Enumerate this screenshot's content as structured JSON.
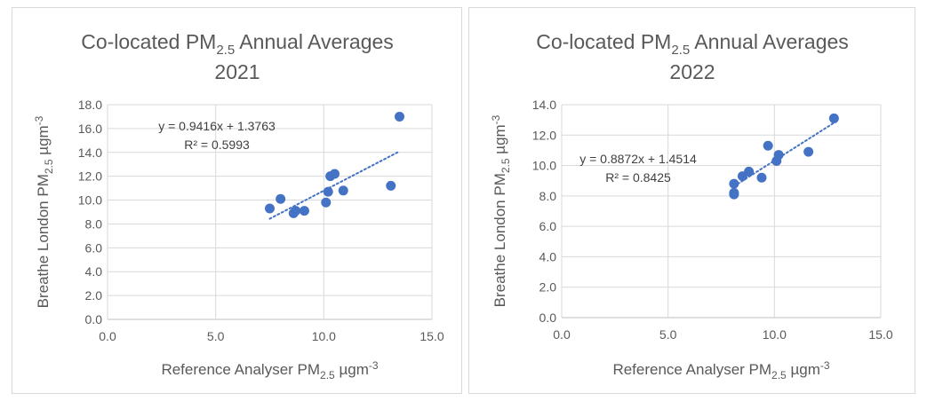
{
  "chart_data": [
    {
      "type": "scatter",
      "title": {
        "main": "Co-located PM",
        "sub": "2.5",
        "rest": " Annual Averages",
        "line2": "2021"
      },
      "xlabel": {
        "main": "Reference Analyser PM",
        "sub": "2.5",
        "rest": " µgm",
        "sup": "-3"
      },
      "ylabel": {
        "main": "Breathe London PM",
        "sub": "2.5",
        "rest": " µgm",
        "sup": "-3"
      },
      "xlim": [
        0,
        15
      ],
      "ylim": [
        0,
        18
      ],
      "x_ticks": [
        "0.0",
        "5.0",
        "10.0",
        "15.0"
      ],
      "y_ticks": [
        "0.0",
        "2.0",
        "4.0",
        "6.0",
        "8.0",
        "10.0",
        "12.0",
        "14.0",
        "16.0",
        "18.0"
      ],
      "grid": true,
      "marker_color": "#4472c4",
      "trendline": {
        "slope": 0.9416,
        "intercept": 1.3763,
        "style": "dotted"
      },
      "equation_label": "y = 0.9416x + 1.3763",
      "r2_label": "R² = 0.5993",
      "points": [
        {
          "x": 7.5,
          "y": 9.3
        },
        {
          "x": 8.0,
          "y": 10.1
        },
        {
          "x": 8.6,
          "y": 8.9
        },
        {
          "x": 8.7,
          "y": 9.1
        },
        {
          "x": 9.1,
          "y": 9.1
        },
        {
          "x": 10.1,
          "y": 9.8
        },
        {
          "x": 10.2,
          "y": 10.7
        },
        {
          "x": 10.3,
          "y": 12.0
        },
        {
          "x": 10.5,
          "y": 12.2
        },
        {
          "x": 10.9,
          "y": 10.8
        },
        {
          "x": 13.1,
          "y": 11.2
        },
        {
          "x": 13.5,
          "y": 17.0
        }
      ]
    },
    {
      "type": "scatter",
      "title": {
        "main": "Co-located PM",
        "sub": "2.5",
        "rest": " Annual Averages",
        "line2": "2022"
      },
      "xlabel": {
        "main": "Reference Analyser PM",
        "sub": "2.5",
        "rest": " µgm",
        "sup": "-3"
      },
      "ylabel": {
        "main": "Breathe London PM",
        "sub": "2.5",
        "rest": " µgm",
        "sup": "-3"
      },
      "xlim": [
        0,
        15
      ],
      "ylim": [
        0,
        14
      ],
      "x_ticks": [
        "0.0",
        "5.0",
        "10.0",
        "15.0"
      ],
      "y_ticks": [
        "0.0",
        "2.0",
        "4.0",
        "6.0",
        "8.0",
        "10.0",
        "12.0",
        "14.0"
      ],
      "grid": true,
      "marker_color": "#4472c4",
      "trendline": {
        "slope": 0.8872,
        "intercept": 1.4514,
        "style": "dotted"
      },
      "equation_label": "y = 0.8872x + 1.4514",
      "r2_label": "R² = 0.8425",
      "points": [
        {
          "x": 8.1,
          "y": 8.1
        },
        {
          "x": 8.1,
          "y": 8.2
        },
        {
          "x": 8.1,
          "y": 8.8
        },
        {
          "x": 8.5,
          "y": 9.3
        },
        {
          "x": 8.8,
          "y": 9.6
        },
        {
          "x": 9.4,
          "y": 9.2
        },
        {
          "x": 9.7,
          "y": 11.3
        },
        {
          "x": 10.1,
          "y": 10.3
        },
        {
          "x": 10.2,
          "y": 10.7
        },
        {
          "x": 11.6,
          "y": 10.9
        },
        {
          "x": 12.8,
          "y": 13.1
        }
      ]
    }
  ]
}
